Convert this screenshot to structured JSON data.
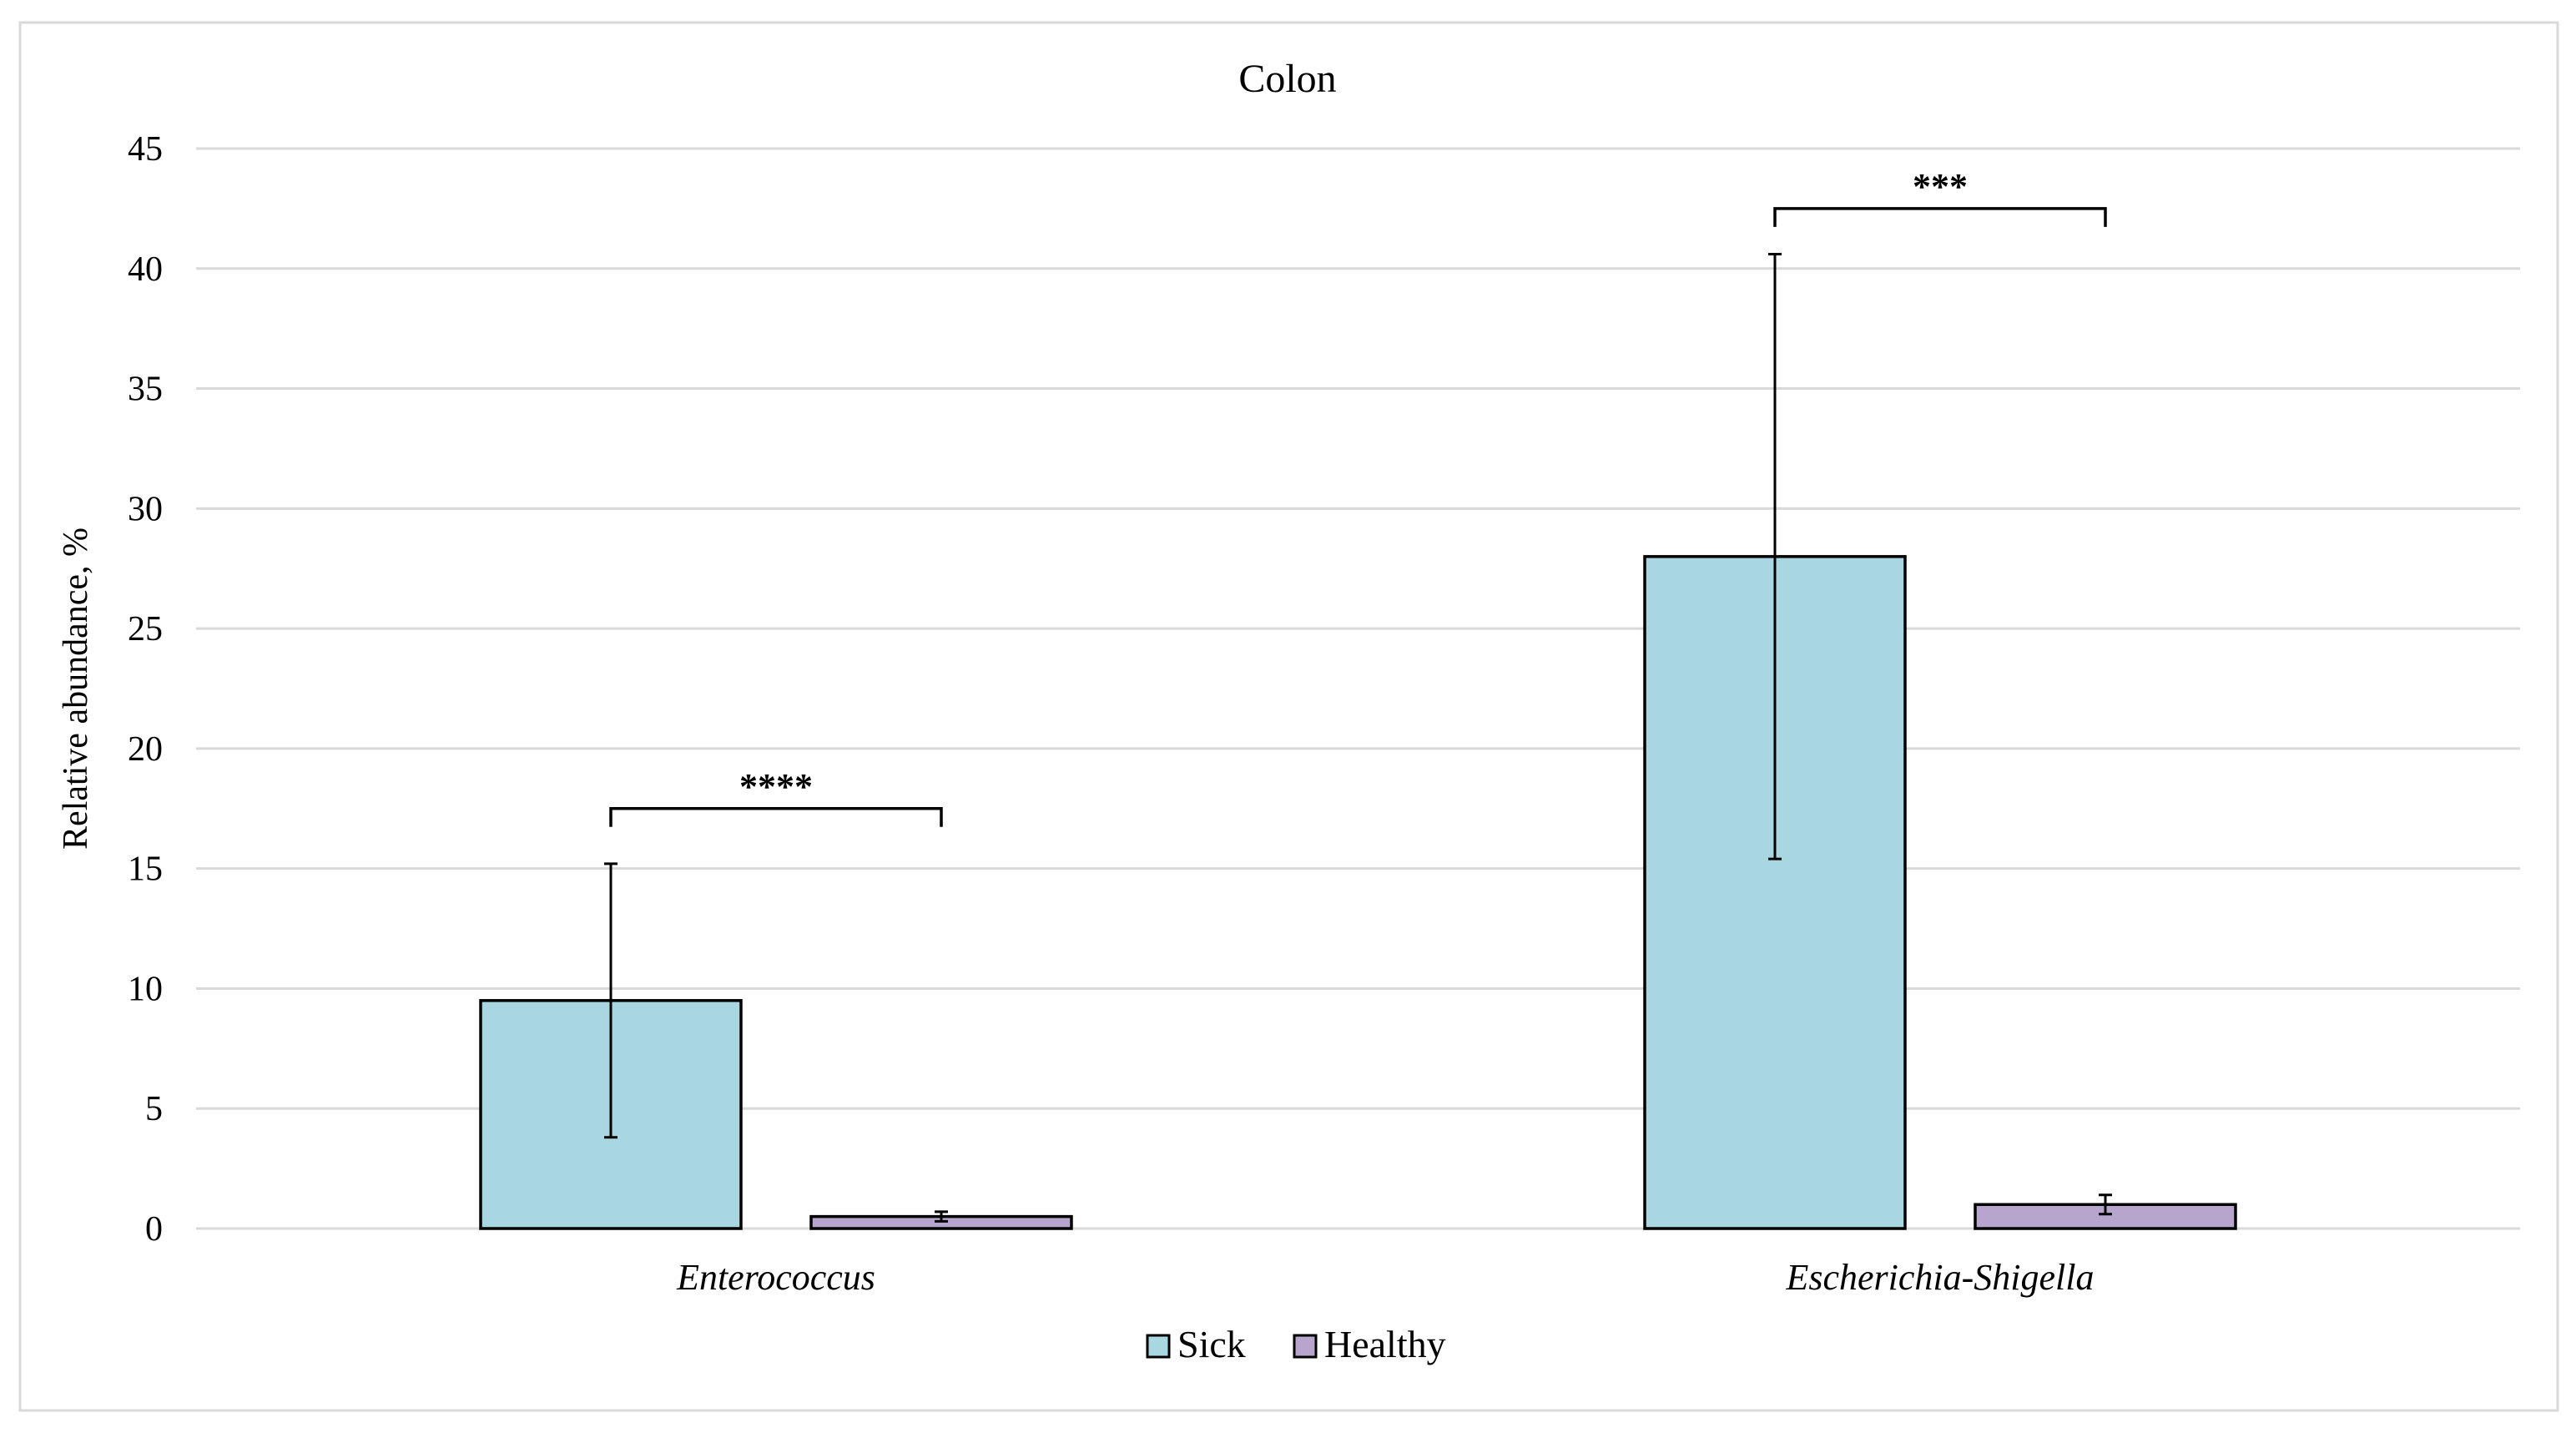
{
  "chart_data": {
    "type": "bar",
    "title": "Colon",
    "xlabel": "",
    "ylabel": "Relative abundance, %",
    "ylim": [
      0,
      45
    ],
    "yticks": [
      0,
      5,
      10,
      15,
      20,
      25,
      30,
      35,
      40,
      45
    ],
    "grid": true,
    "legend_position": "bottom",
    "categories": [
      "Enterococcus",
      "Escherichia-Shigella"
    ],
    "series": [
      {
        "name": "Sick",
        "color": "#A8D7E2",
        "values": [
          9.5,
          28.0
        ],
        "errors": [
          5.7,
          12.6
        ]
      },
      {
        "name": "Healthy",
        "color": "#B7A5CD",
        "values": [
          0.5,
          1.0
        ],
        "errors": [
          0.2,
          0.4
        ]
      }
    ],
    "annotations": [
      {
        "category_index": 0,
        "text": "****",
        "level": 17.5
      },
      {
        "category_index": 1,
        "text": "***",
        "level": 42.5
      }
    ]
  }
}
